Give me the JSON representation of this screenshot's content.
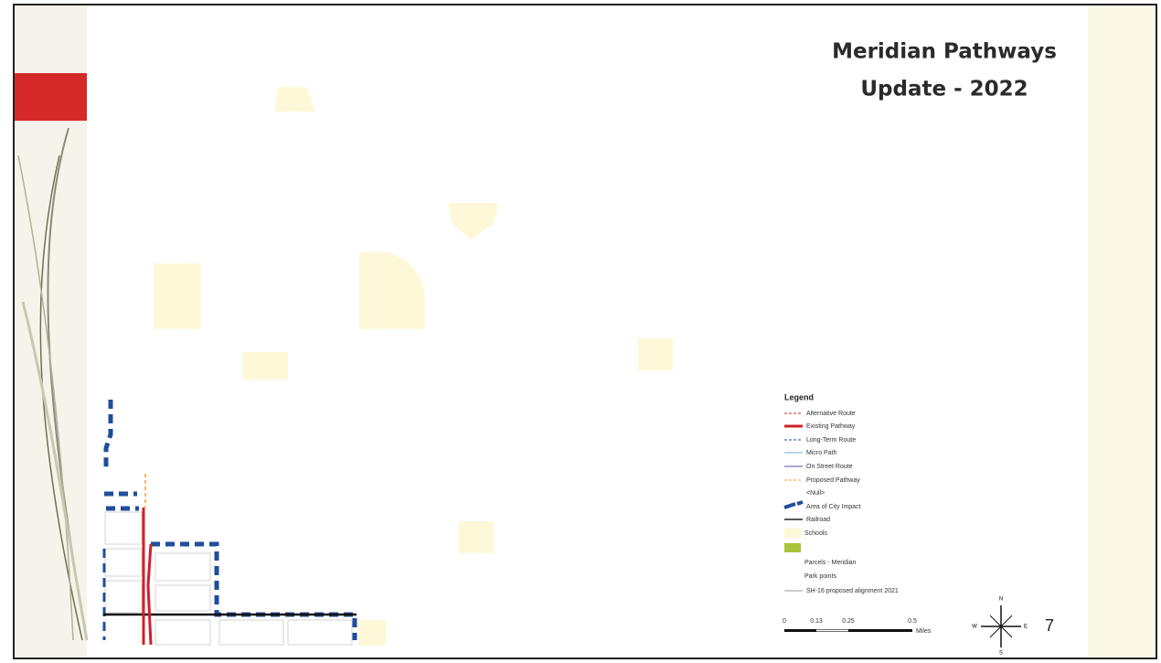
{
  "slide": {
    "title_lines": [
      "Meridian Pathways",
      "Update - 2022"
    ],
    "page_number": "7"
  },
  "legend": {
    "title": "Legend",
    "items": [
      "Alternative Route",
      "Existing Pathway",
      "Long-Term Route",
      "Micro Path",
      "On Street Route",
      "Proposed Pathway",
      "<Null>",
      "Area of City Impact",
      "Railroad",
      "Schools",
      "Parcels - Meridian",
      "Park points",
      "SH-16 proposed alignment 2021"
    ]
  },
  "scale_bar": {
    "labels": [
      "0",
      "0.13",
      "0.25",
      "0.5"
    ],
    "unit": "Miles"
  },
  "compass": {
    "n": "N",
    "w": "W",
    "e": "E",
    "s": "S"
  }
}
